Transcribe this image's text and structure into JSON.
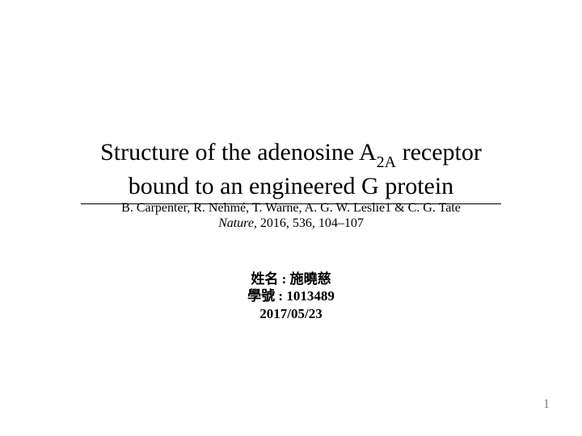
{
  "title": {
    "line1_pre": "Structure of the adenosine A",
    "line1_sub": "2A",
    "line1_post": " receptor",
    "line2": "bound to an engineered G protein"
  },
  "authors": "B. Carpenter, R. Nehmé, T. Warne, A. G. W. Leslie1 & C. G. Tate",
  "citation": {
    "journal": "Nature",
    "rest": ", 2016, 536, 104–107"
  },
  "info": {
    "name_label": "姓名 : ",
    "name_value": "施曉慈",
    "id_label": "學號 : ",
    "id_value": "1013489",
    "date": "2017/05/23"
  },
  "page_number": "1"
}
